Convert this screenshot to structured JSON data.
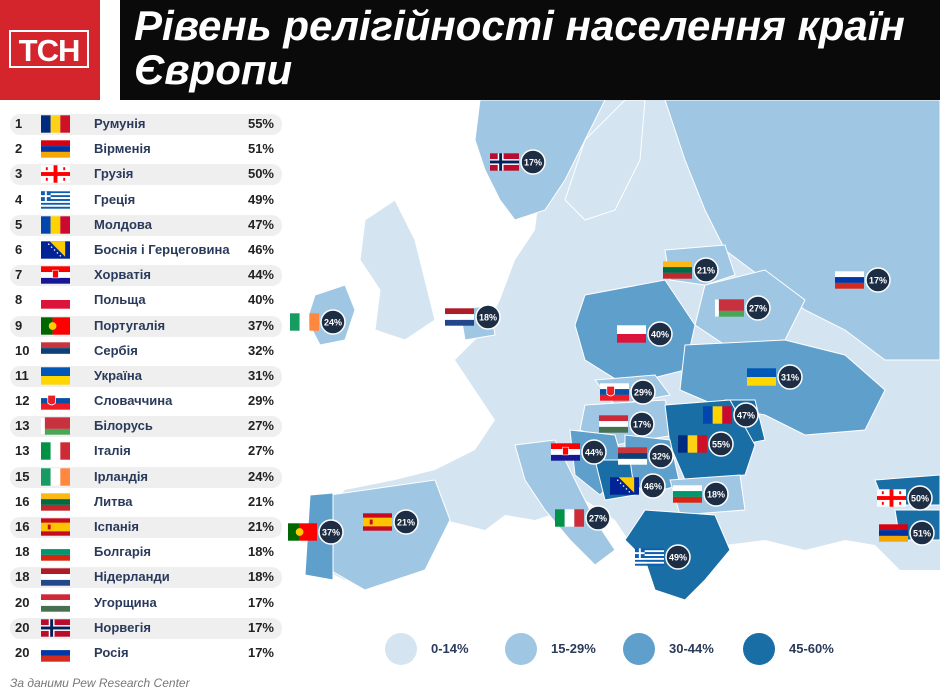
{
  "logo": {
    "text": "ТСН"
  },
  "title": "Рівень релігійності населення країн Європи",
  "source": "За даними Pew Research Center",
  "legend": [
    {
      "label": "0-14%",
      "color": "#d4e4f1"
    },
    {
      "label": "15-29%",
      "color": "#9fc6e2"
    },
    {
      "label": "30-44%",
      "color": "#5f9fcc"
    },
    {
      "label": "45-60%",
      "color": "#1a6ea6"
    }
  ],
  "ranking": [
    {
      "rank": "1",
      "country": "Румунія",
      "pct": "55%",
      "flag": "romania"
    },
    {
      "rank": "2",
      "country": "Вірменія",
      "pct": "51%",
      "flag": "armenia"
    },
    {
      "rank": "3",
      "country": "Грузія",
      "pct": "50%",
      "flag": "georgia"
    },
    {
      "rank": "4",
      "country": "Греція",
      "pct": "49%",
      "flag": "greece"
    },
    {
      "rank": "5",
      "country": "Молдова",
      "pct": "47%",
      "flag": "moldova"
    },
    {
      "rank": "6",
      "country": "Боснія і Герцеговина",
      "pct": "46%",
      "flag": "bosnia"
    },
    {
      "rank": "7",
      "country": "Хорватія",
      "pct": "44%",
      "flag": "croatia"
    },
    {
      "rank": "8",
      "country": "Польща",
      "pct": "40%",
      "flag": "poland"
    },
    {
      "rank": "9",
      "country": "Португалія",
      "pct": "37%",
      "flag": "portugal"
    },
    {
      "rank": "10",
      "country": "Сербія",
      "pct": "32%",
      "flag": "serbia"
    },
    {
      "rank": "11",
      "country": "Україна",
      "pct": "31%",
      "flag": "ukraine"
    },
    {
      "rank": "12",
      "country": "Словаччина",
      "pct": "29%",
      "flag": "slovakia"
    },
    {
      "rank": "13",
      "country": "Білорусь",
      "pct": "27%",
      "flag": "belarus"
    },
    {
      "rank": "13",
      "country": "Італія",
      "pct": "27%",
      "flag": "italy"
    },
    {
      "rank": "15",
      "country": "Ірландія",
      "pct": "24%",
      "flag": "ireland"
    },
    {
      "rank": "16",
      "country": "Литва",
      "pct": "21%",
      "flag": "lithuania"
    },
    {
      "rank": "16",
      "country": "Іспанія",
      "pct": "21%",
      "flag": "spain"
    },
    {
      "rank": "18",
      "country": "Болгарія",
      "pct": "18%",
      "flag": "bulgaria"
    },
    {
      "rank": "18",
      "country": "Нідерланди",
      "pct": "18%",
      "flag": "netherlands"
    },
    {
      "rank": "20",
      "country": "Угорщина",
      "pct": "17%",
      "flag": "hungary"
    },
    {
      "rank": "20",
      "country": "Норвегія",
      "pct": "17%",
      "flag": "norway"
    },
    {
      "rank": "20",
      "country": "Росія",
      "pct": "17%",
      "flag": "russia"
    }
  ],
  "chart_data": {
    "type": "table",
    "title": "Рівень релігійності населення країн Європи",
    "categories": [
      "Румунія",
      "Вірменія",
      "Грузія",
      "Греція",
      "Молдова",
      "Боснія і Герцеговина",
      "Хорватія",
      "Польща",
      "Португалія",
      "Сербія",
      "Україна",
      "Словаччина",
      "Білорусь",
      "Італія",
      "Ірландія",
      "Литва",
      "Іспанія",
      "Болгарія",
      "Нідерланди",
      "Угорщина",
      "Норвегія",
      "Росія"
    ],
    "values": [
      55,
      51,
      50,
      49,
      47,
      46,
      44,
      40,
      37,
      32,
      31,
      29,
      27,
      27,
      24,
      21,
      21,
      18,
      18,
      17,
      17,
      17
    ],
    "unit": "%"
  }
}
